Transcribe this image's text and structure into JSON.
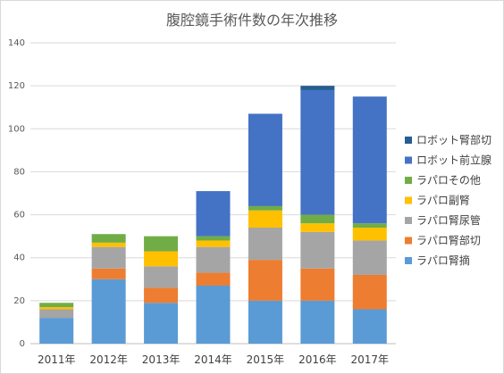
{
  "chart_data": {
    "type": "bar",
    "stacked": true,
    "title": "腹腔鏡手術件数の年次推移",
    "xlabel": "",
    "ylabel": "",
    "categories": [
      "2011年",
      "2012年",
      "2013年",
      "2014年",
      "2015年",
      "2016年",
      "2017年"
    ],
    "ylim": [
      0,
      140
    ],
    "yticks": [
      0,
      20,
      40,
      60,
      80,
      100,
      120,
      140
    ],
    "grid": true,
    "legend_position": "right",
    "series": [
      {
        "name": "ラパロ腎摘",
        "color": "#5b9bd5",
        "values": [
          12,
          30,
          19,
          27,
          20,
          20,
          16
        ]
      },
      {
        "name": "ラパロ腎部切",
        "color": "#ed7d31",
        "values": [
          0,
          5,
          7,
          6,
          19,
          15,
          16
        ]
      },
      {
        "name": "ラパロ腎尿管",
        "color": "#a5a5a5",
        "values": [
          4,
          10,
          10,
          12,
          15,
          17,
          16
        ]
      },
      {
        "name": "ラパロ副腎",
        "color": "#ffc000",
        "values": [
          1,
          2,
          7,
          3,
          8,
          4,
          6
        ]
      },
      {
        "name": "ラパロその他",
        "color": "#70ad47",
        "values": [
          2,
          4,
          7,
          2,
          2,
          4,
          2
        ]
      },
      {
        "name": "ロボット前立腺",
        "color": "#4472c4",
        "values": [
          0,
          0,
          0,
          21,
          43,
          58,
          59
        ]
      },
      {
        "name": "ロボット腎部切",
        "color": "#255e91",
        "values": [
          0,
          0,
          0,
          0,
          0,
          2,
          0
        ]
      }
    ]
  }
}
